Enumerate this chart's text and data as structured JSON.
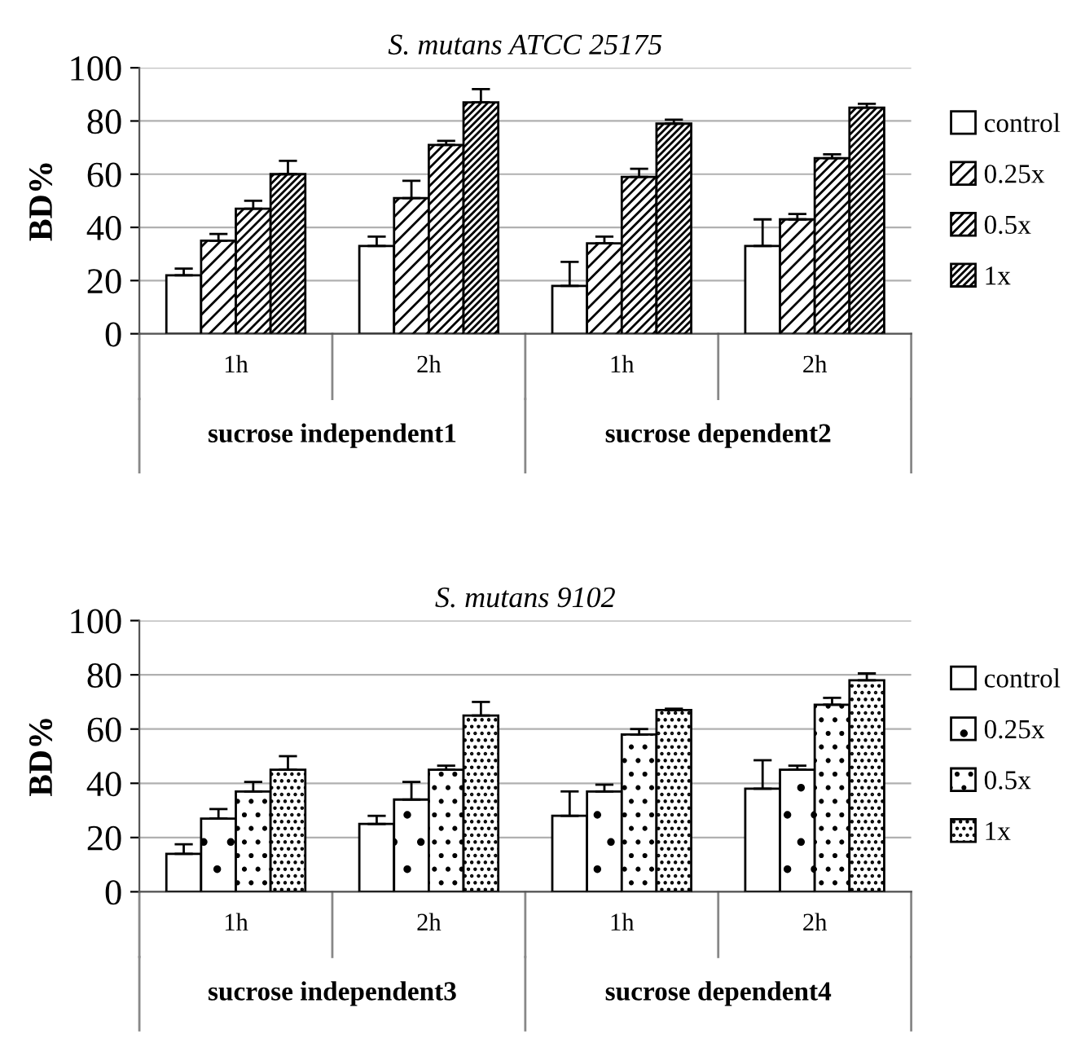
{
  "chart_data": [
    {
      "type": "bar",
      "title": "S. mutans ATCC 25175",
      "ylabel": "BD%",
      "categories": [
        "1h",
        "2h",
        "1h",
        "2h"
      ],
      "annotations": [
        "sucrose independent1",
        "sucrose dependent2"
      ],
      "ylim": [
        0,
        100
      ],
      "yticks": [
        0,
        20,
        40,
        60,
        80,
        100
      ],
      "grid": "y",
      "legend": "right",
      "series": [
        {
          "name": "control",
          "color": "#ffffff",
          "values": [
            22,
            33,
            18,
            33
          ],
          "errors": [
            2.5,
            3.5,
            9,
            10
          ]
        },
        {
          "name": "0.25x",
          "color": "#000000",
          "values": [
            35,
            51,
            34,
            43
          ],
          "errors": [
            2.5,
            6.5,
            2.5,
            2
          ]
        },
        {
          "name": "0.5x",
          "color": "#000000",
          "values": [
            47,
            71,
            59,
            66
          ],
          "errors": [
            3,
            1.5,
            3,
            1.5
          ]
        },
        {
          "name": "1x",
          "color": "#000000",
          "values": [
            60,
            87,
            79,
            85
          ],
          "errors": [
            5,
            5,
            1.5,
            1.5
          ]
        }
      ]
    },
    {
      "type": "bar",
      "title": "S. mutans 9102",
      "ylabel": "BD%",
      "categories": [
        "1h",
        "2h",
        "1h",
        "2h"
      ],
      "annotations": [
        "sucrose independent3",
        "sucrose dependent4"
      ],
      "ylim": [
        0,
        100
      ],
      "yticks": [
        0,
        20,
        40,
        60,
        80,
        100
      ],
      "grid": "y",
      "legend": "right",
      "series": [
        {
          "name": "control",
          "color": "#ffffff",
          "values": [
            14,
            25,
            28,
            38
          ],
          "errors": [
            3.5,
            3,
            9,
            10.5
          ]
        },
        {
          "name": "0.25x",
          "color": "#000000",
          "values": [
            27,
            34,
            37,
            45
          ],
          "errors": [
            3.5,
            6.5,
            2.5,
            1.5
          ]
        },
        {
          "name": "0.5x",
          "color": "#000000",
          "values": [
            37,
            45,
            58,
            69
          ],
          "errors": [
            3.5,
            1.5,
            2,
            2.5
          ]
        },
        {
          "name": "1x",
          "color": "#000000",
          "values": [
            45,
            65,
            67,
            78
          ],
          "errors": [
            5,
            5,
            0.5,
            2.5
          ]
        }
      ]
    }
  ]
}
